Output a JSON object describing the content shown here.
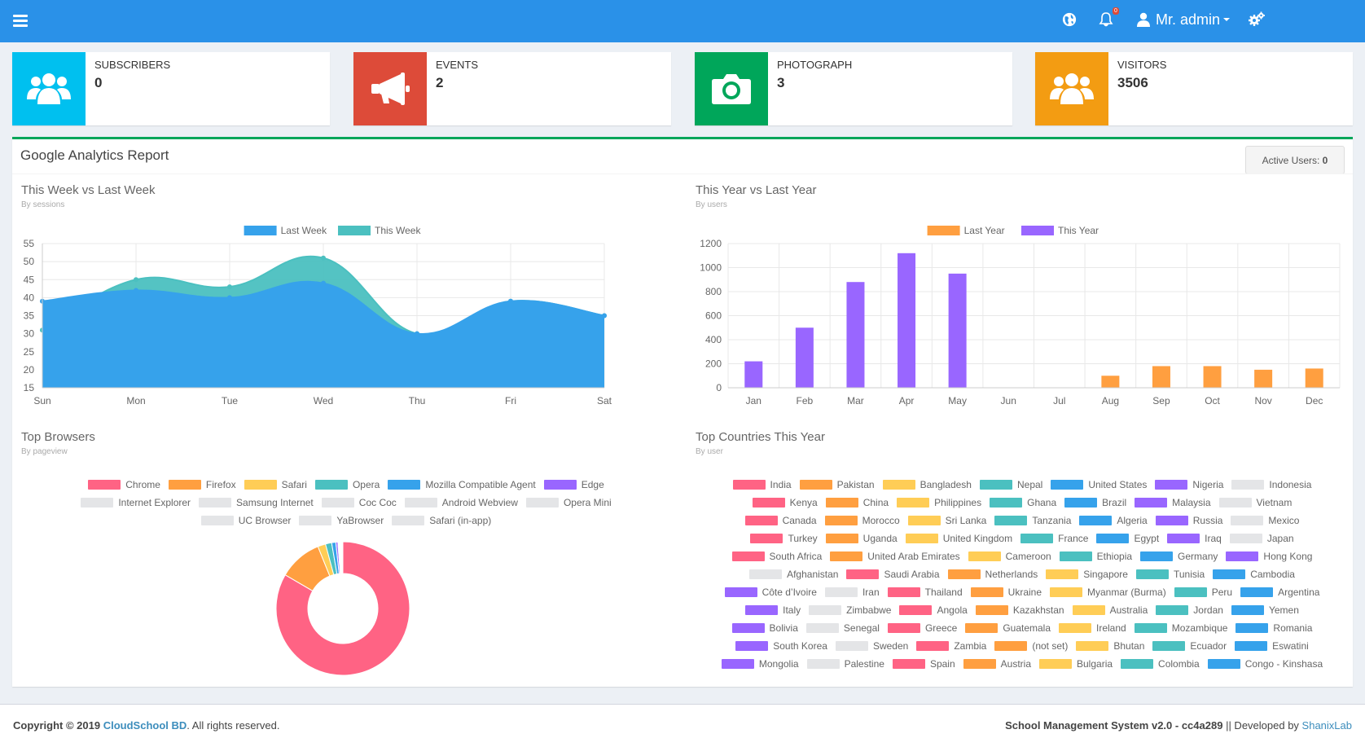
{
  "topbar": {
    "user_name": "Mr. admin",
    "notification_count": "0",
    "icons": [
      "hamburger-menu-icon",
      "globe-icon",
      "bell-icon",
      "user-icon",
      "settings-gears-icon"
    ]
  },
  "cards": [
    {
      "label": "SUBSCRIBERS",
      "value": "0",
      "color": "#00c0ef",
      "icon": "users-icon"
    },
    {
      "label": "EVENTS",
      "value": "2",
      "color": "#dd4b39",
      "icon": "megaphone-icon"
    },
    {
      "label": "PHOTOGRAPH",
      "value": "3",
      "color": "#00a65a",
      "icon": "camera-icon"
    },
    {
      "label": "VISITORS",
      "value": "3506",
      "color": "#f39c12",
      "icon": "users-icon"
    }
  ],
  "report": {
    "title": "Google Analytics Report",
    "active_users_label": "Active Users:",
    "active_users_value": "0"
  },
  "sections": {
    "week": {
      "title": "This Week vs Last Week",
      "subtitle": "By sessions"
    },
    "year": {
      "title": "This Year vs Last Year",
      "subtitle": "By users"
    },
    "browsers": {
      "title": "Top Browsers",
      "subtitle": "By pageview"
    },
    "countries": {
      "title": "Top Countries This Year",
      "subtitle": "By user"
    }
  },
  "chart_data": [
    {
      "type": "area",
      "x": [
        "Sun",
        "Mon",
        "Tue",
        "Wed",
        "Thu",
        "Fri",
        "Sat"
      ],
      "series": [
        {
          "name": "Last Week",
          "values": [
            39,
            42,
            40,
            44,
            30,
            39,
            35
          ],
          "color": "#36a2eb"
        },
        {
          "name": "This Week",
          "values": [
            31,
            45,
            43,
            51,
            30,
            39,
            35
          ],
          "color": "#4bc0c0"
        }
      ],
      "ylim": [
        15,
        55
      ],
      "yticks": [
        15,
        20,
        25,
        30,
        35,
        40,
        45,
        50,
        55
      ],
      "legend": "top"
    },
    {
      "type": "bar",
      "categories": [
        "Jan",
        "Feb",
        "Mar",
        "Apr",
        "May",
        "Jun",
        "Jul",
        "Aug",
        "Sep",
        "Oct",
        "Nov",
        "Dec"
      ],
      "series": [
        {
          "name": "Last Year",
          "values": [
            0,
            0,
            0,
            0,
            0,
            0,
            0,
            100,
            180,
            180,
            150,
            160
          ],
          "color": "#ff9f40"
        },
        {
          "name": "This Year",
          "values": [
            220,
            500,
            880,
            1120,
            950,
            0,
            0,
            0,
            0,
            0,
            0,
            0
          ],
          "color": "#9966ff"
        }
      ],
      "ylim": [
        0,
        1200
      ],
      "yticks": [
        0,
        200,
        400,
        600,
        800,
        1000,
        1200
      ],
      "legend": "top"
    },
    {
      "type": "pie",
      "style": "doughnut",
      "labels": [
        "Chrome",
        "Firefox",
        "Safari",
        "Opera",
        "Mozilla Compatible Agent",
        "Edge",
        "Internet Explorer",
        "Samsung Internet",
        "Coc Coc",
        "Android Webview",
        "Opera Mini",
        "UC Browser",
        "YaBrowser",
        "Safari (in-app)"
      ],
      "values": [
        83.4,
        10.5,
        1.9,
        1.5,
        1.0,
        0.5,
        0.2,
        0.2,
        0.2,
        0.2,
        0.1,
        0.1,
        0.1,
        0.1
      ],
      "colors": [
        "#ff6384",
        "#ff9f40",
        "#ffcd56",
        "#4bc0c0",
        "#36a2eb",
        "#9966ff",
        "#e4e5e7",
        "#e4e5e7",
        "#e4e5e7",
        "#e4e5e7",
        "#e4e5e7",
        "#e4e5e7",
        "#e4e5e7",
        "#e4e5e7"
      ],
      "legend": "top"
    }
  ],
  "countries": [
    "India",
    "Pakistan",
    "Bangladesh",
    "Nepal",
    "United States",
    "Nigeria",
    "Indonesia",
    "Kenya",
    "China",
    "Philippines",
    "Ghana",
    "Brazil",
    "Malaysia",
    "Vietnam",
    "Canada",
    "Morocco",
    "Sri Lanka",
    "Tanzania",
    "Algeria",
    "Russia",
    "Mexico",
    "Turkey",
    "Uganda",
    "United Kingdom",
    "France",
    "Egypt",
    "Iraq",
    "Japan",
    "South Africa",
    "United Arab Emirates",
    "Cameroon",
    "Ethiopia",
    "Germany",
    "Hong Kong",
    "Afghanistan",
    "Saudi Arabia",
    "Netherlands",
    "Singapore",
    "Tunisia",
    "Cambodia",
    "Côte d’Ivoire",
    "Iran",
    "Thailand",
    "Ukraine",
    "Myanmar (Burma)",
    "Peru",
    "Argentina",
    "Italy",
    "Zimbabwe",
    "Angola",
    "Kazakhstan",
    "Australia",
    "Jordan",
    "Yemen",
    "Bolivia",
    "Senegal",
    "Greece",
    "Guatemala",
    "Ireland",
    "Mozambique",
    "Romania",
    "South Korea",
    "Sweden",
    "Zambia",
    "(not set)",
    "Bhutan",
    "Ecuador",
    "Eswatini",
    "Mongolia",
    "Palestine",
    "Spain",
    "Austria",
    "Bulgaria",
    "Colombia",
    "Congo - Kinshasa"
  ],
  "footer": {
    "copyright_prefix": "Copyright © 2019",
    "company": "CloudSchool BD",
    "suffix": ". All rights reserved.",
    "system": "School Management System v2.0 - cc4a289",
    "developed_prefix": " || Developed by ",
    "developer": "ShanixLab"
  }
}
